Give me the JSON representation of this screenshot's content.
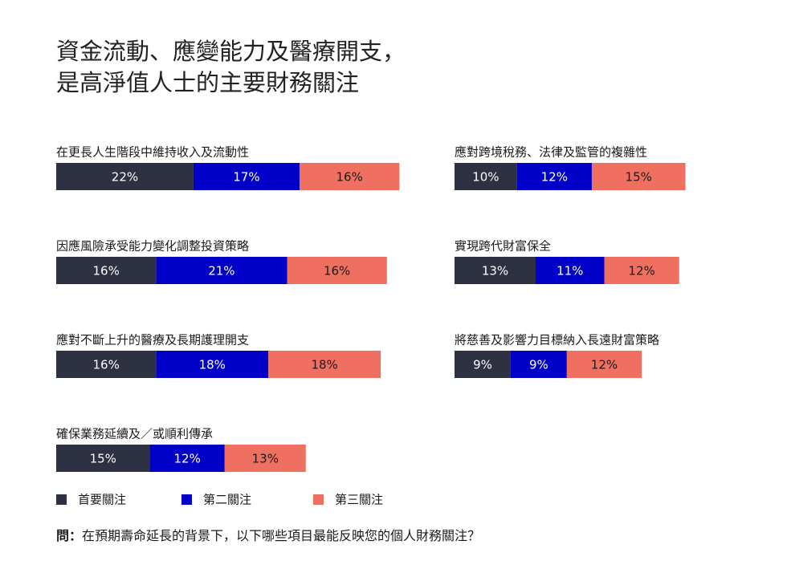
{
  "chart_data": {
    "type": "bar",
    "stacked": true,
    "orientation": "horizontal",
    "title_lines": [
      "資金流動、應變能力及醫療開支，",
      "是高淨值人士的主要財務關注"
    ],
    "categories": [
      "在更長人生階段中維持收入及流動性",
      "因應風險承受能力變化調整投資策略",
      "應對不斷上升的醫療及長期護理開支",
      "確保業務延續及／或順利傳承",
      "應對跨境稅務、法律及監管的複雜性",
      "實現跨代財富保全",
      "將慈善及影響力目標納入長遠財富策略"
    ],
    "series": [
      {
        "name": "首要關注",
        "color": "#2e3142",
        "values": [
          22,
          16,
          16,
          15,
          10,
          13,
          9
        ],
        "value_labels": [
          "22%",
          "16%",
          "16%",
          "15%",
          "10%",
          "13%",
          "9%"
        ]
      },
      {
        "name": "第二關注",
        "color": "#0000c8",
        "values": [
          17,
          21,
          18,
          12,
          12,
          11,
          9
        ],
        "value_labels": [
          "17%",
          "21%",
          "18%",
          "12%",
          "12%",
          "11%",
          "9%"
        ]
      },
      {
        "name": "第三關注",
        "color": "#ef6f60",
        "values": [
          16,
          16,
          18,
          13,
          15,
          12,
          12
        ],
        "value_labels": [
          "16%",
          "16%",
          "18%",
          "13%",
          "15%",
          "12%",
          "12%"
        ]
      }
    ],
    "question_label": "問：",
    "question": "在預期壽命延長的背景下，以下哪些項目最能反映您的個人財務關注？"
  }
}
